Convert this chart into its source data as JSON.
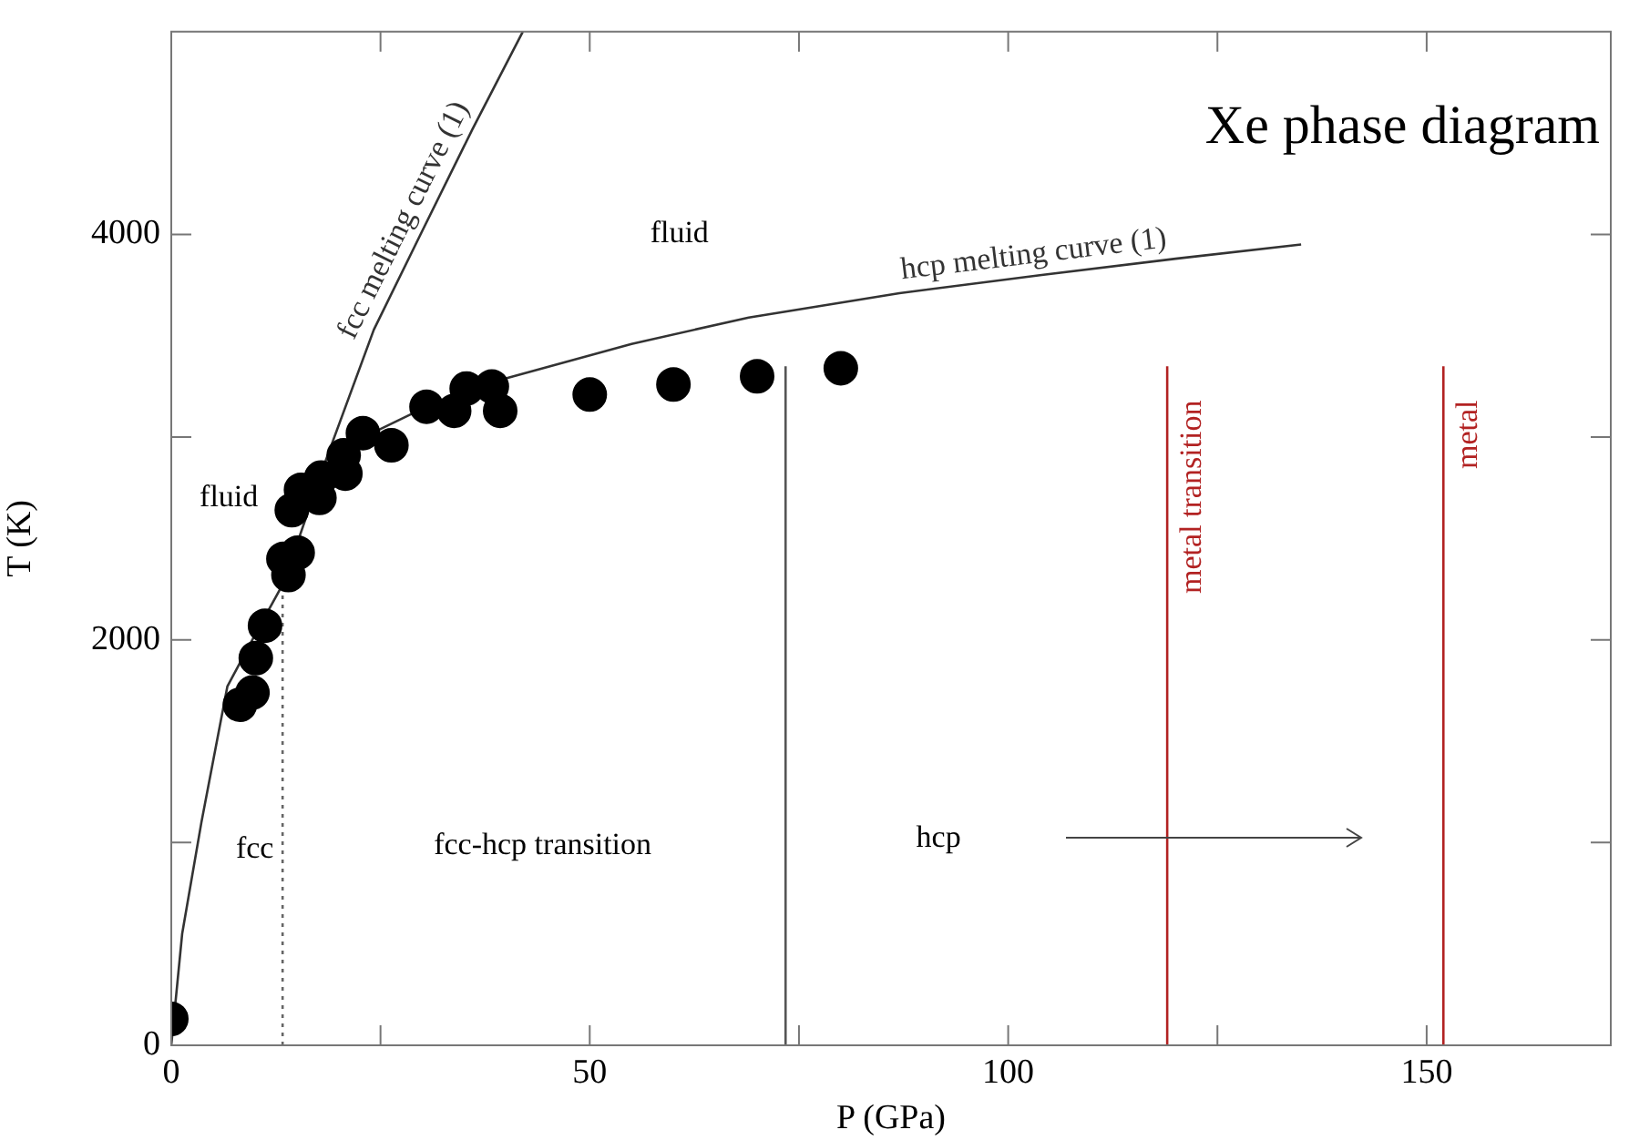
{
  "chart_data": {
    "type": "scatter",
    "title": "Xe phase diagram",
    "xlabel": "P (GPa)",
    "ylabel": "T (K)",
    "xlim": [
      0,
      172
    ],
    "xticks": [
      0,
      {
        "value": 25,
        "label": null
      },
      50,
      {
        "value": 75,
        "label": null
      },
      100,
      {
        "value": 125,
        "label": null
      },
      150
    ],
    "ylim": [
      0,
      5000
    ],
    "yticks": [
      0,
      {
        "value": 1000,
        "label": null
      },
      2000,
      {
        "value": 3000,
        "label": null
      },
      4000
    ],
    "grid": false,
    "legend": false,
    "series": [
      {
        "type": "line",
        "marker": "none",
        "name": "fcc melting curve (1)",
        "color": "#333333",
        "x": [
          0,
          1.3,
          3.6,
          6.7,
          10.2,
          13.4,
          18.5,
          24.2,
          29.9,
          36,
          42
        ],
        "values": [
          0,
          550,
          1100,
          1770,
          2040,
          2280,
          2890,
          3530,
          4010,
          4520,
          5000
        ]
      },
      {
        "type": "line",
        "marker": "none",
        "name": "hcp melting curve (1)",
        "color": "#333333",
        "x": [
          18.5,
          25,
          30,
          40,
          55,
          69,
          87,
          104,
          120,
          135
        ],
        "values": [
          2890,
          3040,
          3140,
          3290,
          3460,
          3590,
          3710,
          3800,
          3880,
          3950
        ]
      },
      {
        "type": "line",
        "marker": "none",
        "color": "#666666",
        "line_style": "dotted",
        "x": [
          13.3,
          13.3
        ],
        "values": [
          0,
          2250
        ]
      },
      {
        "type": "line",
        "marker": "none",
        "color": "#555555",
        "x": [
          73.4,
          73.4
        ],
        "values": [
          0,
          3350
        ]
      },
      {
        "type": "line",
        "marker": "none",
        "name": "metal transition",
        "color": "#b22222",
        "x": [
          119,
          119
        ],
        "values": [
          0,
          3350
        ]
      },
      {
        "type": "line",
        "marker": "none",
        "name": "metal",
        "color": "#b22222",
        "x": [
          152,
          152
        ],
        "values": [
          0,
          3350
        ]
      },
      {
        "marker": "circle",
        "color": "#000000",
        "x": [
          0,
          8.2,
          9.7,
          10.1,
          11.2,
          12.6,
          14.0,
          15.1,
          13.4,
          14.4,
          15.5,
          17.7,
          17.9,
          20.6,
          20.8,
          22.9,
          26.3,
          30.5,
          33.8,
          35.3,
          38.3,
          39.3,
          50,
          60,
          70,
          80
        ],
        "values": [
          130,
          1680,
          1740,
          1910,
          2070,
          null,
          2320,
          2430,
          2400,
          2640,
          2740,
          2700,
          2800,
          2910,
          2820,
          3020,
          2960,
          3150,
          3130,
          3240,
          3250,
          3130,
          3210,
          3260,
          3300,
          3340
        ]
      }
    ],
    "annotations": [
      "fluid",
      "fluid",
      "fcc",
      "fcc-hcp transition",
      "hcp"
    ]
  }
}
